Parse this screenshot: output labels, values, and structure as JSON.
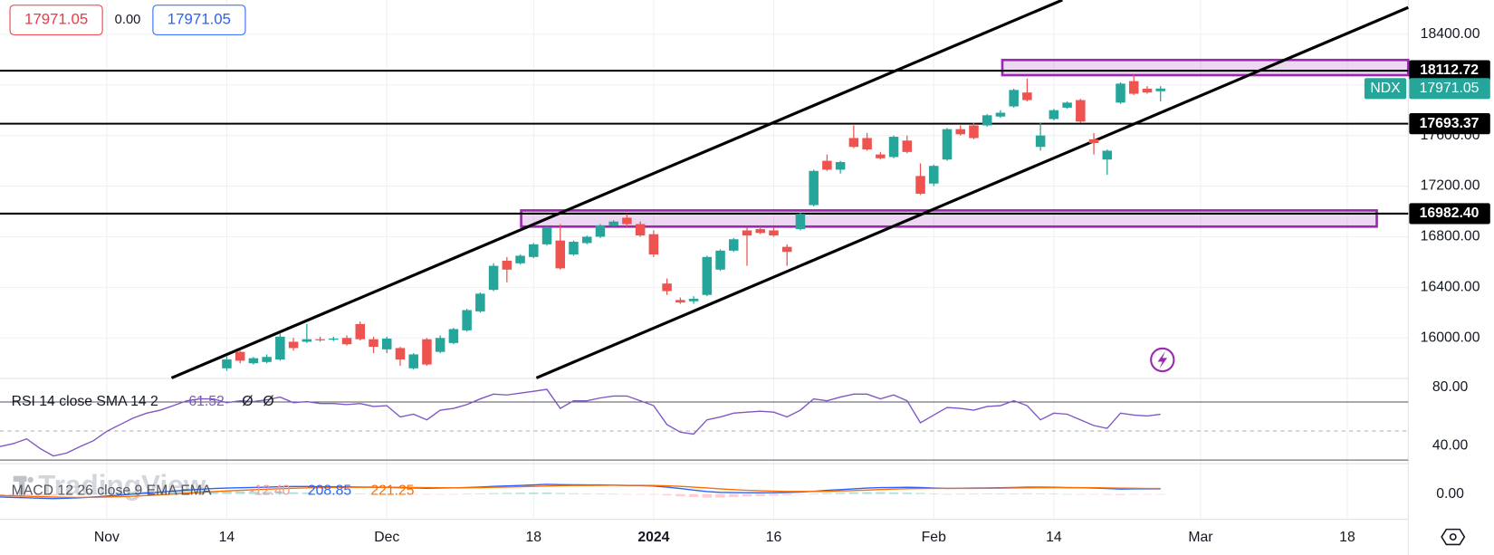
{
  "chart_data": {
    "type": "candlestick",
    "symbol": "NDX",
    "watermark": "TradingView",
    "quote": {
      "sell": "17971.05",
      "spread": "0.00",
      "buy": "17971.05"
    },
    "up_color": "#26a69a",
    "down_color": "#ef5350",
    "xlim": [
      0,
      105.57
    ],
    "xticks": [
      {
        "value": 8,
        "label": "Nov"
      },
      {
        "value": 17,
        "label": "14"
      },
      {
        "value": 29,
        "label": "Dec"
      },
      {
        "value": 40,
        "label": "18"
      },
      {
        "value": 49,
        "label": "2024"
      },
      {
        "value": 58,
        "label": "16"
      },
      {
        "value": 70,
        "label": "Feb"
      },
      {
        "value": 79,
        "label": "14"
      },
      {
        "value": 90,
        "label": "Mar"
      },
      {
        "value": 101,
        "label": "18"
      }
    ],
    "ylim": [
      15684,
      18671
    ],
    "yticks": [
      {
        "value": 16000,
        "label": "16000.00"
      },
      {
        "value": 16400,
        "label": "16400.00"
      },
      {
        "value": 16800,
        "label": "16800.00"
      },
      {
        "value": 17200,
        "label": "17200.00"
      },
      {
        "value": 17600,
        "label": "17600.00"
      },
      {
        "value": 18000,
        "label": "18000.00"
      },
      {
        "value": 18400,
        "label": "18400.00"
      }
    ],
    "grid": true,
    "candles": [
      null,
      null,
      null,
      null,
      null,
      null,
      null,
      null,
      null,
      null,
      null,
      null,
      null,
      null,
      null,
      null,
      null,
      [
        15760,
        15860,
        15740,
        15830
      ],
      [
        15890,
        15900,
        15800,
        15820
      ],
      [
        15800,
        15850,
        15790,
        15840
      ],
      [
        15810,
        15870,
        15800,
        15850
      ],
      [
        15830,
        16040,
        15820,
        16010
      ],
      [
        15970,
        16000,
        15900,
        15920
      ],
      [
        15970,
        16110,
        15960,
        15990
      ],
      [
        15990,
        16010,
        15970,
        15985
      ],
      [
        15990,
        16010,
        15975,
        15995
      ],
      [
        16000,
        16020,
        15940,
        15950
      ],
      [
        16110,
        16130,
        15980,
        15990
      ],
      [
        15990,
        16010,
        15880,
        15930
      ],
      [
        15910,
        16010,
        15880,
        15995
      ],
      [
        15920,
        15930,
        15780,
        15830
      ],
      [
        15760,
        15880,
        15750,
        15870
      ],
      [
        15990,
        16000,
        15780,
        15790
      ],
      [
        15890,
        16020,
        15880,
        16000
      ],
      [
        15960,
        16080,
        15950,
        16070
      ],
      [
        16060,
        16230,
        16050,
        16220
      ],
      [
        16210,
        16360,
        16200,
        16350
      ],
      [
        16380,
        16590,
        16370,
        16570
      ],
      [
        16610,
        16640,
        16440,
        16540
      ],
      [
        16590,
        16660,
        16580,
        16650
      ],
      [
        16640,
        16750,
        16630,
        16740
      ],
      [
        16740,
        16880,
        16730,
        16870
      ],
      [
        16770,
        16900,
        16540,
        16550
      ],
      [
        16660,
        16770,
        16650,
        16760
      ],
      [
        16750,
        16810,
        16740,
        16800
      ],
      [
        16800,
        16900,
        16790,
        16890
      ],
      [
        16890,
        16930,
        16880,
        16920
      ],
      [
        16950,
        16980,
        16880,
        16900
      ],
      [
        16900,
        16920,
        16800,
        16810
      ],
      [
        16820,
        16850,
        16640,
        16660
      ],
      [
        16430,
        16470,
        16340,
        16370
      ],
      [
        16300,
        16320,
        16270,
        16280
      ],
      [
        16290,
        16330,
        16270,
        16310
      ],
      [
        16340,
        16650,
        16330,
        16640
      ],
      [
        16540,
        16700,
        16530,
        16690
      ],
      [
        16690,
        16790,
        16680,
        16780
      ],
      [
        16850,
        16870,
        16570,
        16810
      ],
      [
        16860,
        16880,
        16820,
        16830
      ],
      [
        16850,
        16870,
        16800,
        16810
      ],
      [
        16720,
        16740,
        16570,
        16680
      ],
      [
        16860,
        16990,
        16850,
        16980
      ],
      [
        17050,
        17330,
        17040,
        17320
      ],
      [
        17400,
        17450,
        17320,
        17330
      ],
      [
        17330,
        17400,
        17300,
        17390
      ],
      [
        17580,
        17680,
        17500,
        17510
      ],
      [
        17580,
        17620,
        17480,
        17490
      ],
      [
        17450,
        17470,
        17410,
        17420
      ],
      [
        17430,
        17600,
        17420,
        17590
      ],
      [
        17560,
        17600,
        17460,
        17470
      ],
      [
        17280,
        17380,
        17130,
        17140
      ],
      [
        17220,
        17370,
        17200,
        17360
      ],
      [
        17410,
        17660,
        17400,
        17650
      ],
      [
        17650,
        17680,
        17600,
        17610
      ],
      [
        17680,
        17700,
        17570,
        17580
      ],
      [
        17680,
        17770,
        17670,
        17760
      ],
      [
        17750,
        17800,
        17740,
        17780
      ],
      [
        17830,
        17970,
        17820,
        17960
      ],
      [
        17940,
        18050,
        17870,
        17880
      ],
      [
        17510,
        17700,
        17480,
        17600
      ],
      [
        17730,
        17810,
        17720,
        17800
      ],
      [
        17820,
        17870,
        17810,
        17860
      ],
      [
        17880,
        17890,
        17700,
        17710
      ],
      [
        17570,
        17620,
        17450,
        17540
      ],
      [
        17410,
        17490,
        17290,
        17480
      ],
      [
        17860,
        18020,
        17850,
        18010
      ],
      [
        18030,
        18080,
        17920,
        17930
      ],
      [
        17970,
        17990,
        17930,
        17940
      ],
      [
        17950,
        17990,
        17870,
        17971.05
      ]
    ],
    "levels": [
      {
        "value": 18112.72,
        "label": "18112.72"
      },
      {
        "value": 17693.37,
        "label": "17693.37"
      },
      {
        "value": 16982.4,
        "label": "16982.40"
      }
    ],
    "zones": [
      {
        "x": [
          75.14,
          105.57
        ],
        "y": [
          18077,
          18197
        ]
      },
      {
        "x": [
          39.07,
          103.21
        ],
        "y": [
          16880,
          17008
        ]
      }
    ],
    "trendlines": [
      {
        "x": [
          12.86,
          79.64
        ],
        "y": [
          15684,
          18671
        ]
      },
      {
        "x": [
          40.21,
          105.57
        ],
        "y": [
          15684,
          18612
        ]
      }
    ],
    "rsi": {
      "label": "RSI 14 close SMA 14 2",
      "na_labels": [
        "Ø",
        "Ø"
      ],
      "color": "#7e57c2",
      "ylim": [
        28.2,
        85.9
      ],
      "yticks": [
        {
          "value": 80,
          "label": "80.00"
        },
        {
          "value": 40,
          "label": "40.00"
        }
      ],
      "levels": [
        70,
        50,
        30
      ],
      "values": [
        39.3,
        41.3,
        44.6,
        38.0,
        32.8,
        34.8,
        39.3,
        43.3,
        49.8,
        54.4,
        59.0,
        62.3,
        64.3,
        67.5,
        70.8,
        72.1,
        72.1,
        69.5,
        70.8,
        70.2,
        71.5,
        73.4,
        69.5,
        70.2,
        68.9,
        68.9,
        68.2,
        68.9,
        66.9,
        67.5,
        59.7,
        61.6,
        57.7,
        64.3,
        65.6,
        68.2,
        72.1,
        75.4,
        74.8,
        76.1,
        77.4,
        78.7,
        65.6,
        70.8,
        70.8,
        72.8,
        74.1,
        74.1,
        70.8,
        67.5,
        54.4,
        49.2,
        47.9,
        57.7,
        59.7,
        62.3,
        63.0,
        63.6,
        63.0,
        59.7,
        64.3,
        72.1,
        70.8,
        73.4,
        75.4,
        75.4,
        72.1,
        74.8,
        70.8,
        55.7,
        61.0,
        66.2,
        65.6,
        64.3,
        66.9,
        67.5,
        70.8,
        67.5,
        57.7,
        62.3,
        61.6,
        57.7,
        53.8,
        51.8,
        62.3,
        61.0,
        60.3,
        61.52
      ]
    },
    "macd": {
      "label": "MACD 12 26 close 9 EMA EMA",
      "ylim": [
        -1000,
        1190
      ],
      "yticks": [
        {
          "value": 0,
          "label": "0.00"
        }
      ],
      "hist": {
        "last_label": "-12.40",
        "up_color": "#b2dfdb",
        "down_color": "#ffcdd2",
        "values": [
          -60,
          -65,
          -60,
          -64,
          -59,
          -40,
          -16,
          11,
          41,
          65,
          84,
          99,
          111,
          120,
          128,
          126,
          125,
          116,
          105,
          92,
          85,
          84,
          71,
          57,
          41,
          29,
          19,
          11,
          5,
          -4,
          -15,
          -20,
          -24,
          -15,
          -4,
          9,
          23,
          38,
          46,
          53,
          58,
          63,
          42,
          30,
          20,
          14,
          5,
          -4,
          -11,
          -25,
          -52,
          -90,
          -120,
          -144,
          -139,
          -119,
          -99,
          -83,
          -62,
          -41,
          -21,
          7,
          38,
          54,
          67,
          78,
          78,
          66,
          57,
          42,
          13,
          2,
          6,
          9,
          11,
          17,
          21,
          29,
          23,
          10,
          0,
          -4,
          -15,
          -28,
          -38,
          -22,
          -16,
          -12.4
        ]
      },
      "series": [
        {
          "name": "MACD",
          "color": "#2962ff",
          "values": [
            -120,
            -140,
            -150,
            -170,
            -180,
            -170,
            -150,
            -120,
            -80,
            -40,
            0,
            40,
            80,
            120,
            160,
            190,
            220,
            240,
            255,
            265,
            280,
            300,
            305,
            305,
            300,
            295,
            290,
            285,
            280,
            270,
            255,
            245,
            235,
            240,
            250,
            265,
            285,
            310,
            330,
            350,
            370,
            390,
            380,
            375,
            370,
            368,
            360,
            350,
            340,
            320,
            280,
            220,
            160,
            100,
            70,
            60,
            55,
            50,
            55,
            65,
            80,
            110,
            150,
            180,
            210,
            240,
            260,
            265,
            270,
            265,
            240,
            230,
            235,
            240,
            245,
            255,
            265,
            280,
            280,
            270,
            260,
            255,
            240,
            220,
            200,
            210,
            210,
            208.85
          ]
        },
        {
          "name": "Signal",
          "color": "#ff6d00",
          "values": [
            -60,
            -75,
            -90,
            -106,
            -121,
            -130,
            -134,
            -131,
            -121,
            -105,
            -84,
            -59,
            -31,
            0,
            32,
            64,
            95,
            124,
            150,
            173,
            195,
            216,
            234,
            248,
            259,
            266,
            271,
            274,
            275,
            274,
            270,
            265,
            259,
            255,
            254,
            256,
            262,
            272,
            284,
            297,
            312,
            327,
            338,
            345,
            350,
            354,
            355,
            354,
            351,
            345,
            332,
            310,
            280,
            244,
            209,
            179,
            154,
            133,
            117,
            106,
            101,
            103,
            112,
            126,
            143,
            162,
            182,
            199,
            213,
            223,
            227,
            228,
            229,
            231,
            234,
            238,
            244,
            251,
            257,
            260,
            260,
            259,
            255,
            248,
            238,
            232,
            226,
            221.25
          ]
        }
      ]
    }
  }
}
